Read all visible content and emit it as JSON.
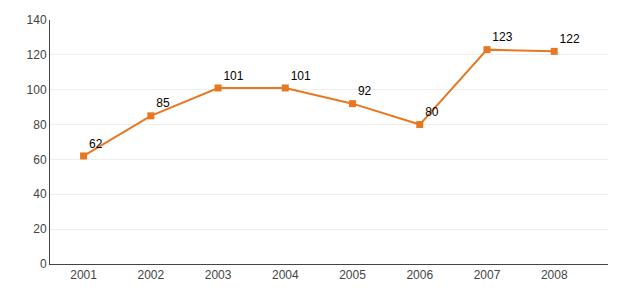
{
  "chart_data": {
    "type": "line",
    "x": [
      2001,
      2002,
      2003,
      2004,
      2005,
      2006,
      2007,
      2008
    ],
    "values": [
      62,
      85,
      101,
      101,
      92,
      80,
      123,
      122
    ],
    "color": "#E87722",
    "marker": "square",
    "xlim": [
      2000.5,
      2008.8
    ],
    "xticks": [
      2001,
      2002,
      2003,
      2004,
      2005,
      2006,
      2007,
      2008
    ],
    "ylim": [
      0,
      140
    ],
    "yticks": [
      0,
      20,
      40,
      60,
      80,
      100,
      120,
      140
    ],
    "grid": true,
    "data_labels": true
  }
}
